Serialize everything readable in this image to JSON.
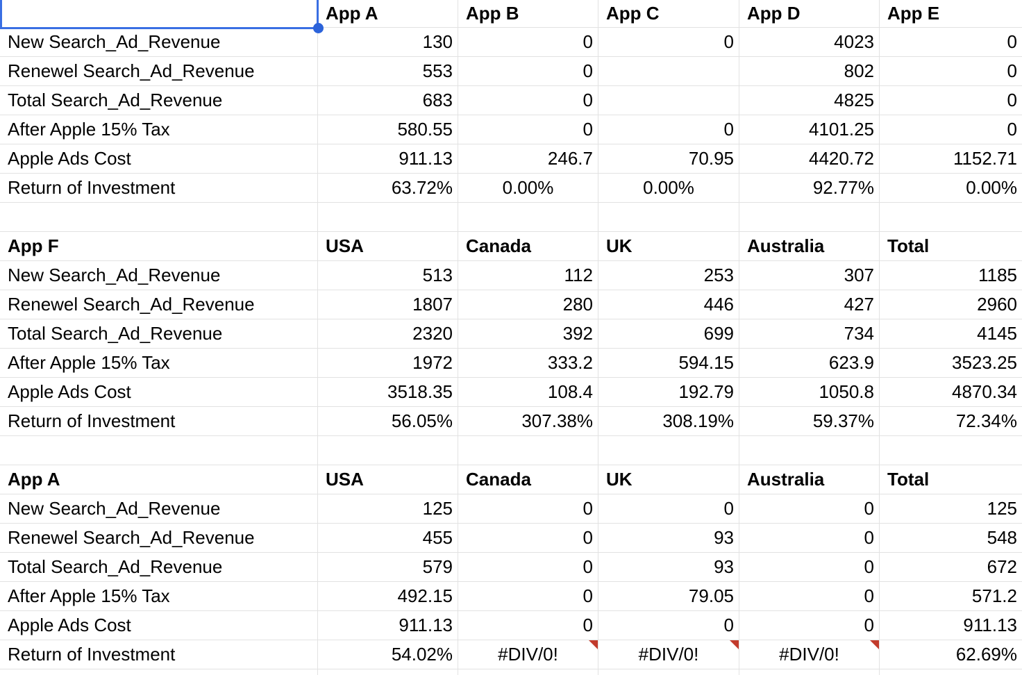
{
  "app": {
    "kind": "spreadsheet"
  },
  "colors": {
    "background": "#ffffff",
    "text": "#000000",
    "gridline": "#e2e2e2",
    "selection_border": "#3a6fe3",
    "selection_handle": "#2c63da",
    "error_indicator": "#c23b2c"
  },
  "selection": {
    "location": "top-left title cell of first table",
    "row": 0,
    "col": 0
  },
  "tables": [
    {
      "title": "",
      "columns": [
        "App A",
        "App B",
        "App C",
        "App D",
        "App E"
      ],
      "rows": [
        {
          "label": "New Search_Ad_Revenue",
          "cells": [
            "130",
            "0",
            "0",
            "4023",
            "0"
          ]
        },
        {
          "label": "Renewel Search_Ad_Revenue",
          "cells": [
            "553",
            "0",
            "",
            "802",
            "0"
          ]
        },
        {
          "label": "Total Search_Ad_Revenue",
          "cells": [
            "683",
            "0",
            "",
            "4825",
            "0"
          ]
        },
        {
          "label": "After Apple 15% Tax",
          "cells": [
            "580.55",
            "0",
            "0",
            "4101.25",
            "0"
          ]
        },
        {
          "label": "Apple Ads Cost",
          "cells": [
            "911.13",
            "246.7",
            "70.95",
            "4420.72",
            "1152.71"
          ]
        },
        {
          "label": "Return of Investment",
          "cells": [
            {
              "text": "63.72%"
            },
            {
              "text": "0.00%",
              "align": "center"
            },
            {
              "text": "0.00%",
              "align": "center"
            },
            {
              "text": "92.77%"
            },
            {
              "text": "0.00%"
            }
          ]
        }
      ]
    },
    {
      "title": "App F",
      "columns": [
        "USA",
        "Canada",
        "UK",
        "Australia",
        "Total"
      ],
      "rows": [
        {
          "label": "New Search_Ad_Revenue",
          "cells": [
            "513",
            "112",
            "253",
            "307",
            "1185"
          ]
        },
        {
          "label": "Renewel Search_Ad_Revenue",
          "cells": [
            "1807",
            "280",
            "446",
            "427",
            "2960"
          ]
        },
        {
          "label": "Total Search_Ad_Revenue",
          "cells": [
            "2320",
            "392",
            "699",
            "734",
            "4145"
          ]
        },
        {
          "label": "After Apple 15% Tax",
          "cells": [
            "1972",
            "333.2",
            "594.15",
            "623.9",
            "3523.25"
          ]
        },
        {
          "label": "Apple Ads Cost",
          "cells": [
            "3518.35",
            "108.4",
            "192.79",
            "1050.8",
            "4870.34"
          ]
        },
        {
          "label": "Return of Investment",
          "cells": [
            "56.05%",
            "307.38%",
            "308.19%",
            "59.37%",
            "72.34%"
          ]
        }
      ]
    },
    {
      "title": "App A",
      "columns": [
        "USA",
        "Canada",
        "UK",
        "Australia",
        "Total"
      ],
      "rows": [
        {
          "label": "New Search_Ad_Revenue",
          "cells": [
            "125",
            "0",
            "0",
            "0",
            "125"
          ]
        },
        {
          "label": "Renewel Search_Ad_Revenue",
          "cells": [
            "455",
            "0",
            "93",
            "0",
            "548"
          ]
        },
        {
          "label": "Total Search_Ad_Revenue",
          "cells": [
            "579",
            "0",
            "93",
            "0",
            "672"
          ]
        },
        {
          "label": "After Apple 15% Tax",
          "cells": [
            "492.15",
            "0",
            "79.05",
            "0",
            "571.2"
          ]
        },
        {
          "label": "Apple Ads Cost",
          "cells": [
            "911.13",
            "0",
            "0",
            "0",
            "911.13"
          ]
        },
        {
          "label": "Return of Investment",
          "cells": [
            {
              "text": "54.02%"
            },
            {
              "text": "#DIV/0!",
              "align": "center",
              "error": true
            },
            {
              "text": "#DIV/0!",
              "align": "center",
              "error": true
            },
            {
              "text": "#DIV/0!",
              "align": "center",
              "error": true
            },
            {
              "text": "62.69%"
            }
          ]
        }
      ]
    }
  ]
}
